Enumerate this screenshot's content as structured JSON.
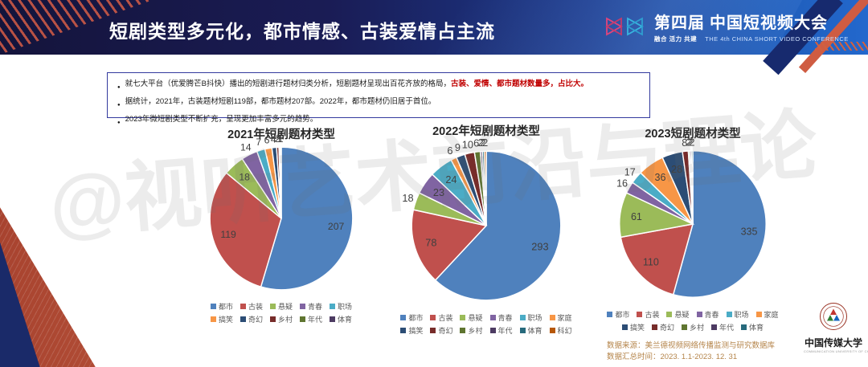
{
  "slide": {
    "header": {
      "title": "短剧类型多元化，都市情感、古装爱情占主流",
      "conference": {
        "name_prefix": "第四届",
        "name": "中国短视频大会",
        "slogan": "融合 活力 共建",
        "subtitle_en": "THE 4th CHINA SHORT VIDEO CONFERENCE"
      }
    },
    "bullets": [
      {
        "pre": "就七大平台（优爱腾芒B抖快）播出的短剧进行题材归类分析，短剧题材呈现出百花齐放的格局，",
        "highlight": "古装、爱情、都市题材数量多，占比大。"
      },
      {
        "pre": "据统计，2021年，古装题材短剧119部，都市题材207部。2022年，都市题材仍旧居于首位。",
        "highlight": ""
      },
      {
        "pre": "2023年微短剧类型不断扩充，呈现更加丰富多元的趋势。",
        "highlight": ""
      }
    ],
    "source": {
      "line1": "数据来源：美兰德视频网络传播监测与研究数据库",
      "line2": "数据汇总时间：2023. 1.1-2023. 12. 31"
    },
    "watermark": "@视听艺术前沿与理论",
    "university": {
      "name": "中国传媒大学",
      "name_en": "COMMUNICATION UNIVERSITY OF CHINA"
    },
    "colors": {
      "header_navy": "#14143b",
      "header_blue": "#2368cd",
      "accent_red": "#cf5c42",
      "highlight_text_red": "#c00000",
      "source_text": "#b5854b"
    }
  },
  "chart_data": [
    {
      "type": "pie",
      "title": "2021年短剧题材类型",
      "categories": [
        "都市",
        "古装",
        "悬疑",
        "青春",
        "职场",
        "搞笑",
        "奇幻",
        "乡村",
        "年代",
        "体育"
      ],
      "values": [
        207,
        119,
        18,
        14,
        7,
        6,
        4,
        2,
        1,
        1
      ],
      "colors": [
        "#4F81BD",
        "#C0504D",
        "#9BBB59",
        "#8064A2",
        "#4BACC6",
        "#F79646",
        "#2C4D75",
        "#772C2A",
        "#5F7530",
        "#4D3B62"
      ],
      "legend_position": "bottom",
      "start_angle": "12-oclock-clockwise"
    },
    {
      "type": "pie",
      "title": "2022年短剧题材类型",
      "categories": [
        "都市",
        "古装",
        "悬疑",
        "青春",
        "职场",
        "家庭",
        "搞笑",
        "奇幻",
        "乡村",
        "年代",
        "体育",
        "科幻"
      ],
      "values": [
        293,
        78,
        18,
        23,
        24,
        6,
        9,
        10,
        6,
        2,
        2,
        2
      ],
      "colors": [
        "#4F81BD",
        "#C0504D",
        "#9BBB59",
        "#8064A2",
        "#4BACC6",
        "#F79646",
        "#2C4D75",
        "#772C2A",
        "#5F7530",
        "#4D3B62",
        "#276A7C",
        "#B65708"
      ],
      "legend_position": "bottom",
      "start_angle": "12-oclock-clockwise"
    },
    {
      "type": "pie",
      "title": "2023短剧题材类型",
      "categories": [
        "都市",
        "古装",
        "悬疑",
        "青春",
        "职场",
        "家庭",
        "搞笑",
        "奇幻",
        "乡村",
        "年代",
        "体育"
      ],
      "values": [
        335,
        110,
        61,
        16,
        17,
        36,
        28,
        8,
        2,
        2,
        2
      ],
      "colors": [
        "#4F81BD",
        "#C0504D",
        "#9BBB59",
        "#8064A2",
        "#4BACC6",
        "#F79646",
        "#2C4D75",
        "#772C2A",
        "#5F7530",
        "#4D3B62",
        "#276A7C"
      ],
      "legend_position": "bottom",
      "start_angle": "12-oclock-clockwise"
    }
  ]
}
